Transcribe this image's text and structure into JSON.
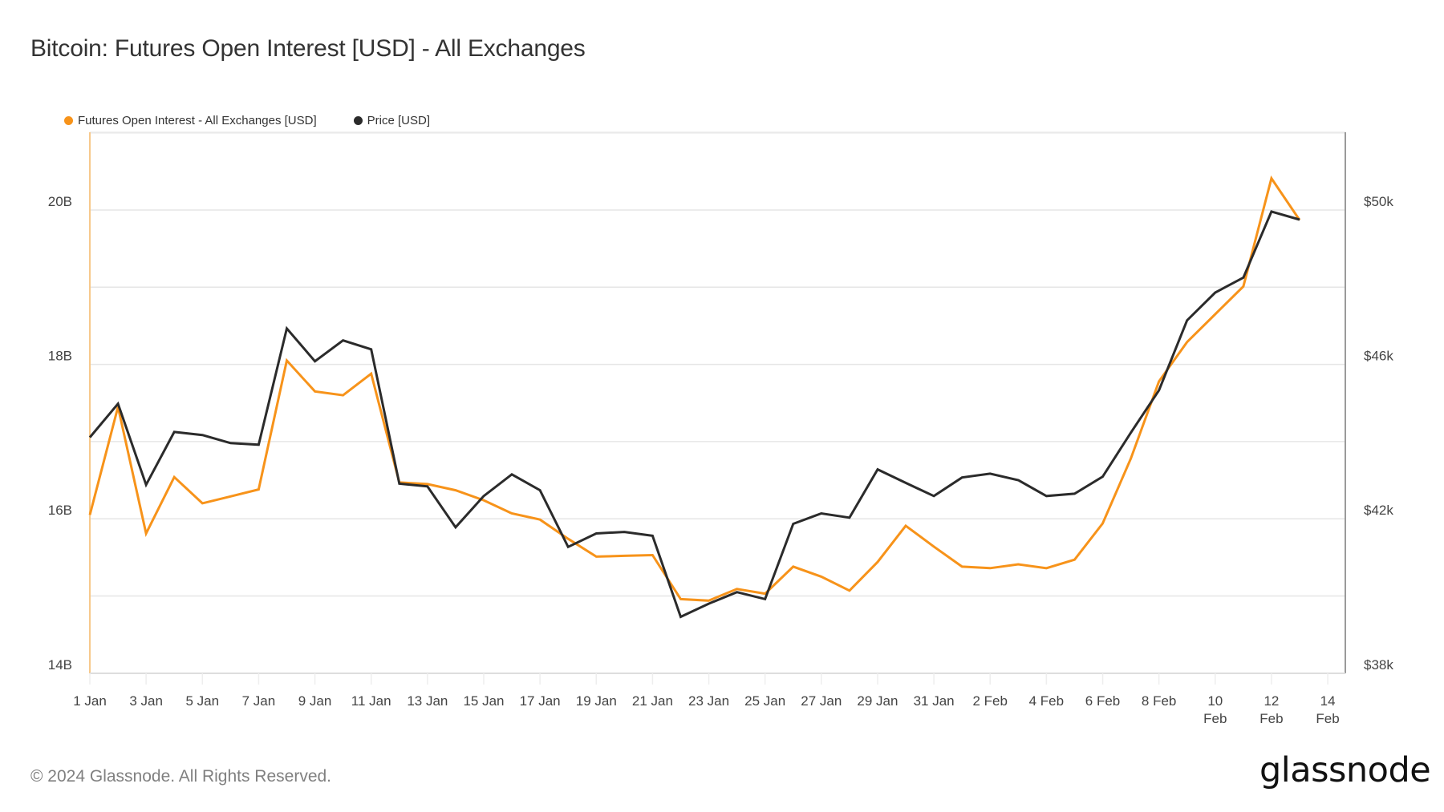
{
  "page": {
    "title": "Bitcoin: Futures Open Interest [USD] - All Exchanges",
    "footer": "© 2024 Glassnode. All Rights Reserved.",
    "logo": "glassnode"
  },
  "legend": [
    {
      "label": "Futures Open Interest - All Exchanges [USD]",
      "color": "#f7931a"
    },
    {
      "label": "Price [USD]",
      "color": "#2b2b2b"
    }
  ],
  "chart_data": {
    "type": "line",
    "title": "Bitcoin: Futures Open Interest [USD] - All Exchanges",
    "xlabel": "",
    "ylabel_left": "Futures Open Interest [USD]",
    "ylabel_right": "Price [USD]",
    "x": [
      "1 Jan",
      "2 Jan",
      "3 Jan",
      "4 Jan",
      "5 Jan",
      "6 Jan",
      "7 Jan",
      "8 Jan",
      "9 Jan",
      "10 Jan",
      "11 Jan",
      "12 Jan",
      "13 Jan",
      "14 Jan",
      "15 Jan",
      "16 Jan",
      "17 Jan",
      "18 Jan",
      "19 Jan",
      "20 Jan",
      "21 Jan",
      "22 Jan",
      "23 Jan",
      "24 Jan",
      "25 Jan",
      "26 Jan",
      "27 Jan",
      "28 Jan",
      "29 Jan",
      "30 Jan",
      "31 Jan",
      "1 Feb",
      "2 Feb",
      "3 Feb",
      "4 Feb",
      "5 Feb",
      "6 Feb",
      "7 Feb",
      "8 Feb",
      "9 Feb",
      "10 Feb",
      "11 Feb",
      "12 Feb",
      "13 Feb"
    ],
    "x_tick_labels": [
      [
        "1 Jan"
      ],
      [
        "3 Jan"
      ],
      [
        "5 Jan"
      ],
      [
        "7 Jan"
      ],
      [
        "9 Jan"
      ],
      [
        "11 Jan"
      ],
      [
        "13 Jan"
      ],
      [
        "15 Jan"
      ],
      [
        "17 Jan"
      ],
      [
        "19 Jan"
      ],
      [
        "21 Jan"
      ],
      [
        "23 Jan"
      ],
      [
        "25 Jan"
      ],
      [
        "27 Jan"
      ],
      [
        "29 Jan"
      ],
      [
        "31 Jan"
      ],
      [
        "2 Feb"
      ],
      [
        "4 Feb"
      ],
      [
        "6 Feb"
      ],
      [
        "8 Feb"
      ],
      [
        "10",
        "Feb"
      ],
      [
        "12",
        "Feb"
      ],
      [
        "14",
        "Feb"
      ]
    ],
    "x_tick_every_days": 2,
    "y_left_ticks": [
      "14B",
      "16B",
      "18B",
      "20B"
    ],
    "y_left_range_billion": [
      14,
      21
    ],
    "y_right_ticks": [
      "$38k",
      "$42k",
      "$46k",
      "$50k"
    ],
    "y_right_range_k": [
      38,
      52
    ],
    "grid": true,
    "legend_position": "top-left",
    "series": [
      {
        "name": "Futures Open Interest - All Exchanges [USD]",
        "axis": "left",
        "unit": "billion USD",
        "color": "#f7931a",
        "values": [
          16.05,
          17.45,
          15.81,
          16.54,
          16.2,
          16.29,
          16.38,
          18.05,
          17.65,
          17.6,
          17.88,
          16.47,
          16.45,
          16.37,
          16.24,
          16.07,
          15.99,
          15.74,
          15.51,
          15.52,
          15.53,
          14.96,
          14.94,
          15.09,
          15.03,
          15.38,
          15.25,
          15.07,
          15.44,
          15.91,
          15.64,
          15.38,
          15.36,
          15.41,
          15.36,
          15.47,
          15.94,
          16.78,
          17.78,
          18.29,
          18.65,
          19.01,
          20.41,
          19.87
        ]
      },
      {
        "name": "Price [USD]",
        "axis": "right",
        "unit": "thousand USD",
        "color": "#2b2b2b",
        "values": [
          44.11,
          44.98,
          42.88,
          44.25,
          44.17,
          43.96,
          43.92,
          46.93,
          46.08,
          46.62,
          46.39,
          42.91,
          42.84,
          41.78,
          42.59,
          43.15,
          42.74,
          41.27,
          41.62,
          41.66,
          41.56,
          39.46,
          39.8,
          40.1,
          39.92,
          41.87,
          42.14,
          42.03,
          43.28,
          42.93,
          42.59,
          43.07,
          43.17,
          43.0,
          42.59,
          42.65,
          43.09,
          44.23,
          45.33,
          47.14,
          47.86,
          48.25,
          49.96,
          49.75
        ]
      }
    ]
  }
}
